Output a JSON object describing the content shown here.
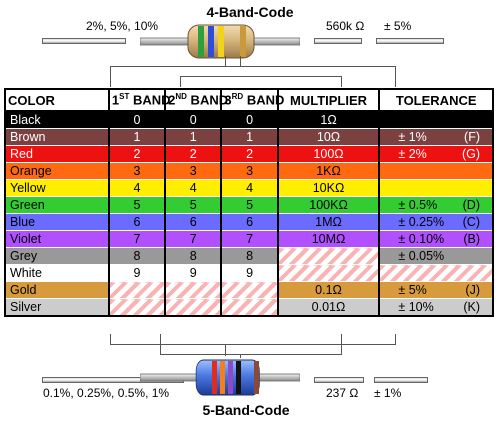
{
  "four_band": {
    "title": "4-Band-Code",
    "left_caption": "2%, 5%, 10%",
    "right_value": "560k Ω",
    "right_tolerance": "± 5%",
    "band_colors": [
      "#2e9e3e",
      "#2d4dd8",
      "#f2d21a",
      "#c99a3c"
    ]
  },
  "five_band": {
    "title": "5-Band-Code",
    "left_caption": "0.1%, 0.25%, 0.5%, 1%",
    "right_value": "237 Ω",
    "right_tolerance": "± 1%",
    "band_colors": [
      "#e42a1c",
      "#f47f1e",
      "#8d4ac9",
      "#111111",
      "#8a4a36"
    ]
  },
  "table": {
    "headers": {
      "color": "COLOR",
      "band1_num": "1",
      "band1_sup": "ST",
      "band1_text": " BAND",
      "band2_num": "2",
      "band2_sup": "ND",
      "band2_text": " BAND",
      "band3_num": "3",
      "band3_sup": "RD",
      "band3_text": " BAND",
      "multiplier": "MULTIPLIER",
      "tolerance": "TOLERANCE"
    },
    "rows": [
      {
        "name": "Black",
        "b1": "0",
        "b2": "0",
        "b3": "0",
        "mult": "1Ω",
        "tol": "",
        "code": "",
        "bg": "#000000",
        "fg": "#ffffff"
      },
      {
        "name": "Brown",
        "b1": "1",
        "b2": "1",
        "b3": "1",
        "mult": "10Ω",
        "tol": "± 1%",
        "code": "(F)",
        "bg": "#7b4141",
        "fg": "#ffffff"
      },
      {
        "name": "Red",
        "b1": "2",
        "b2": "2",
        "b3": "2",
        "mult": "100Ω",
        "tol": "± 2%",
        "code": "(G)",
        "bg": "#ee1111",
        "fg": "#ffffff"
      },
      {
        "name": "Orange",
        "b1": "3",
        "b2": "3",
        "b3": "3",
        "mult": "1KΩ",
        "tol": "",
        "code": "",
        "bg": "#ff6a10",
        "fg": "#000000"
      },
      {
        "name": "Yellow",
        "b1": "4",
        "b2": "4",
        "b3": "4",
        "mult": "10KΩ",
        "tol": "",
        "code": "",
        "bg": "#ffee00",
        "fg": "#000000"
      },
      {
        "name": "Green",
        "b1": "5",
        "b2": "5",
        "b3": "5",
        "mult": "100KΩ",
        "tol": "± 0.5%",
        "code": "(D)",
        "bg": "#33cc33",
        "fg": "#000000"
      },
      {
        "name": "Blue",
        "b1": "6",
        "b2": "6",
        "b3": "6",
        "mult": "1MΩ",
        "tol": "± 0.25%",
        "code": "(C)",
        "bg": "#6b6bff",
        "fg": "#000000"
      },
      {
        "name": "Violet",
        "b1": "7",
        "b2": "7",
        "b3": "7",
        "mult": "10MΩ",
        "tol": "± 0.10%",
        "code": "(B)",
        "bg": "#b050ff",
        "fg": "#000000"
      },
      {
        "name": "Grey",
        "b1": "8",
        "b2": "8",
        "b3": "8",
        "mult": "",
        "tol": "± 0.05%",
        "code": "",
        "bg": "#999999",
        "fg": "#000000"
      },
      {
        "name": "White",
        "b1": "9",
        "b2": "9",
        "b3": "9",
        "mult": "",
        "tol": "",
        "code": "",
        "bg": "#ffffff",
        "fg": "#000000"
      },
      {
        "name": "Gold",
        "b1": "",
        "b2": "",
        "b3": "",
        "mult": "0.1Ω",
        "tol": "± 5%",
        "code": "(J)",
        "bg": "#d79a3c",
        "fg": "#000000"
      },
      {
        "name": "Silver",
        "b1": "",
        "b2": "",
        "b3": "",
        "mult": "0.01Ω",
        "tol": "± 10%",
        "code": "(K)",
        "bg": "#cccccc",
        "fg": "#000000"
      }
    ]
  }
}
